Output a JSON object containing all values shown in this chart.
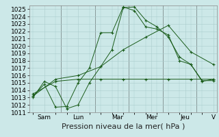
{
  "background_color": "#cce8e8",
  "grid_color": "#aacccc",
  "line_color": "#1a5c1a",
  "marker_color": "#1a5c1a",
  "ylim": [
    1011,
    1025.5
  ],
  "yticks": [
    1011,
    1012,
    1013,
    1014,
    1015,
    1016,
    1017,
    1018,
    1019,
    1020,
    1021,
    1022,
    1023,
    1024,
    1025
  ],
  "xlabel": "Pression niveau de la mer( hPa )",
  "xlabel_fontsize": 8,
  "tick_fontsize": 6.5,
  "xtick_labels": [
    "Sam",
    "Lun",
    "Mar",
    "Mer",
    "Jeu",
    "V"
  ],
  "series": [
    {
      "x": [
        0,
        1,
        2,
        3,
        4,
        5,
        6,
        7,
        8,
        9,
        10,
        11,
        12,
        13,
        14,
        15,
        16
      ],
      "y": [
        1013.0,
        1015.2,
        1014.5,
        1011.5,
        1012.0,
        1015.0,
        1017.2,
        1019.5,
        1025.2,
        1025.3,
        1023.5,
        1022.6,
        1021.2,
        1018.5,
        1017.5,
        1015.3,
        1015.3
      ]
    },
    {
      "x": [
        0,
        1,
        2,
        3,
        4,
        5,
        6,
        7,
        8,
        9,
        10,
        11,
        12,
        13,
        14,
        15,
        16
      ],
      "y": [
        1013.2,
        1014.8,
        1011.7,
        1011.8,
        1015.0,
        1017.0,
        1021.8,
        1021.8,
        1025.3,
        1024.8,
        1022.6,
        1022.3,
        1021.5,
        1018.0,
        1017.5,
        1015.2,
        1015.5
      ]
    },
    {
      "x": [
        0,
        2,
        4,
        6,
        8,
        10,
        12,
        14,
        16
      ],
      "y": [
        1013.2,
        1015.5,
        1016.0,
        1017.2,
        1019.5,
        1021.2,
        1022.8,
        1019.2,
        1017.5
      ]
    },
    {
      "x": [
        0,
        2,
        4,
        6,
        8,
        10,
        12,
        14,
        16
      ],
      "y": [
        1013.5,
        1015.2,
        1015.5,
        1015.5,
        1015.5,
        1015.5,
        1015.5,
        1015.5,
        1015.5
      ]
    }
  ],
  "n_points": 17,
  "day_separators": [
    2.5,
    5.5,
    8.5,
    11.5,
    14.5
  ],
  "xtick_positions": [
    1.0,
    4.0,
    7.5,
    10.5,
    13.5,
    16.0
  ]
}
